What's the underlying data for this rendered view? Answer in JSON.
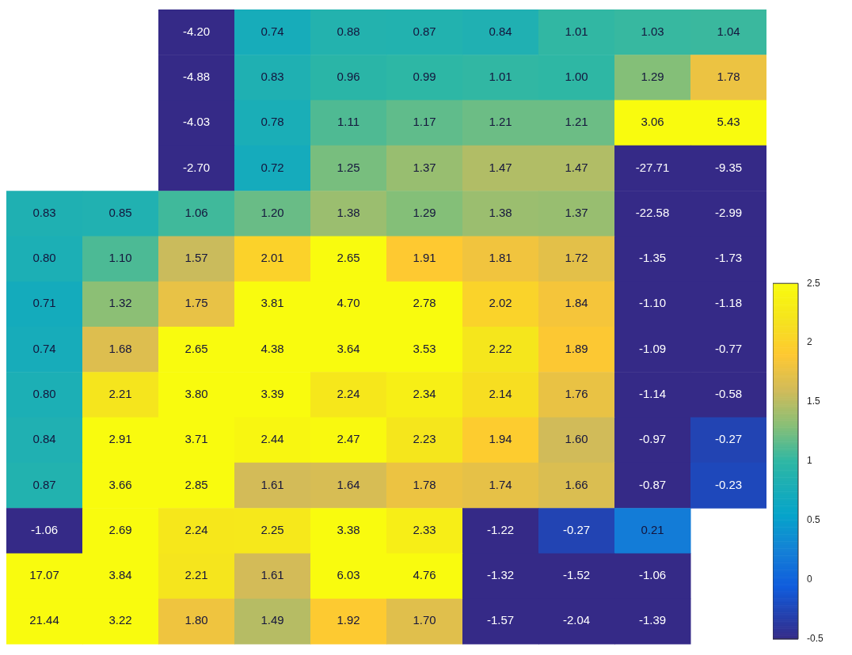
{
  "chart_data": {
    "type": "heatmap",
    "tick_labels": false,
    "categories": [
      null,
      null,
      null,
      null,
      null,
      null,
      null,
      null,
      null,
      null
    ],
    "y_categories": [
      null,
      null,
      null,
      null,
      null,
      null,
      null,
      null,
      null,
      null,
      null,
      null,
      null,
      null
    ],
    "cells": [
      [
        null,
        null,
        -4.2,
        0.74,
        0.88,
        0.87,
        0.84,
        1.01,
        1.03,
        1.04
      ],
      [
        null,
        null,
        -4.88,
        0.83,
        0.96,
        0.99,
        1.01,
        1.0,
        1.29,
        1.78
      ],
      [
        null,
        null,
        -4.03,
        0.78,
        1.11,
        1.17,
        1.21,
        1.21,
        3.06,
        5.43
      ],
      [
        null,
        null,
        -2.7,
        0.72,
        1.25,
        1.37,
        1.47,
        1.47,
        -27.71,
        -9.35
      ],
      [
        0.83,
        0.85,
        1.06,
        1.2,
        1.38,
        1.29,
        1.38,
        1.37,
        -22.58,
        -2.99
      ],
      [
        0.8,
        1.1,
        1.57,
        2.01,
        2.65,
        1.91,
        1.81,
        1.72,
        -1.35,
        -1.73
      ],
      [
        0.71,
        1.32,
        1.75,
        3.81,
        4.7,
        2.78,
        2.02,
        1.84,
        -1.1,
        -1.18
      ],
      [
        0.74,
        1.68,
        2.65,
        4.38,
        3.64,
        3.53,
        2.22,
        1.89,
        -1.09,
        -0.77
      ],
      [
        0.8,
        2.21,
        3.8,
        3.39,
        2.24,
        2.34,
        2.14,
        1.76,
        -1.14,
        -0.58
      ],
      [
        0.84,
        2.91,
        3.71,
        2.44,
        2.47,
        2.23,
        1.94,
        1.6,
        -0.97,
        -0.27
      ],
      [
        0.87,
        3.66,
        2.85,
        1.61,
        1.64,
        1.78,
        1.74,
        1.66,
        -0.87,
        -0.23
      ],
      [
        -1.06,
        2.69,
        2.24,
        2.25,
        3.38,
        2.33,
        -1.22,
        -0.27,
        0.21,
        null
      ],
      [
        17.07,
        3.84,
        2.21,
        1.61,
        6.03,
        4.76,
        -1.32,
        -1.52,
        -1.06,
        null
      ],
      [
        21.44,
        3.22,
        1.8,
        1.49,
        1.92,
        1.7,
        -1.57,
        -2.04,
        -1.39,
        null
      ]
    ],
    "cell_labels": [
      [
        null,
        null,
        "-4.20",
        "0.74",
        "0.88",
        "0.87",
        "0.84",
        "1.01",
        "1.03",
        "1.04"
      ],
      [
        null,
        null,
        "-4.88",
        "0.83",
        "0.96",
        "0.99",
        "1.01",
        "1.00",
        "1.29",
        "1.78"
      ],
      [
        null,
        null,
        "-4.03",
        "0.78",
        "1.11",
        "1.17",
        "1.21",
        "1.21",
        "3.06",
        "5.43"
      ],
      [
        null,
        null,
        "-2.70",
        "0.72",
        "1.25",
        "1.37",
        "1.47",
        "1.47",
        "-27.71",
        "-9.35"
      ],
      [
        "0.83",
        "0.85",
        "1.06",
        "1.20",
        "1.38",
        "1.29",
        "1.38",
        "1.37",
        "-22.58",
        "-2.99"
      ],
      [
        "0.80",
        "1.10",
        "1.57",
        "2.01",
        "2.65",
        "1.91",
        "1.81",
        "1.72",
        "-1.35",
        "-1.73"
      ],
      [
        "0.71",
        "1.32",
        "1.75",
        "3.81",
        "4.70",
        "2.78",
        "2.02",
        "1.84",
        "-1.10",
        "-1.18"
      ],
      [
        "0.74",
        "1.68",
        "2.65",
        "4.38",
        "3.64",
        "3.53",
        "2.22",
        "1.89",
        "-1.09",
        "-0.77"
      ],
      [
        "0.80",
        "2.21",
        "3.80",
        "3.39",
        "2.24",
        "2.34",
        "2.14",
        "1.76",
        "-1.14",
        "-0.58"
      ],
      [
        "0.84",
        "2.91",
        "3.71",
        "2.44",
        "2.47",
        "2.23",
        "1.94",
        "1.60",
        "-0.97",
        "-0.27"
      ],
      [
        "0.87",
        "3.66",
        "2.85",
        "1.61",
        "1.64",
        "1.78",
        "1.74",
        "1.66",
        "-0.87",
        "-0.23"
      ],
      [
        "-1.06",
        "2.69",
        "2.24",
        "2.25",
        "3.38",
        "2.33",
        "-1.22",
        "-0.27",
        "0.21",
        null
      ],
      [
        "17.07",
        "3.84",
        "2.21",
        "1.61",
        "6.03",
        "4.76",
        "-1.32",
        "-1.52",
        "-1.06",
        null
      ],
      [
        "21.44",
        "3.22",
        "1.80",
        "1.49",
        "1.92",
        "1.70",
        "-1.57",
        "-2.04",
        "-1.39",
        null
      ]
    ],
    "clim": [
      -0.5,
      2.5
    ],
    "cticks": [
      -0.5,
      0,
      0.5,
      1,
      1.5,
      2,
      2.5
    ]
  }
}
